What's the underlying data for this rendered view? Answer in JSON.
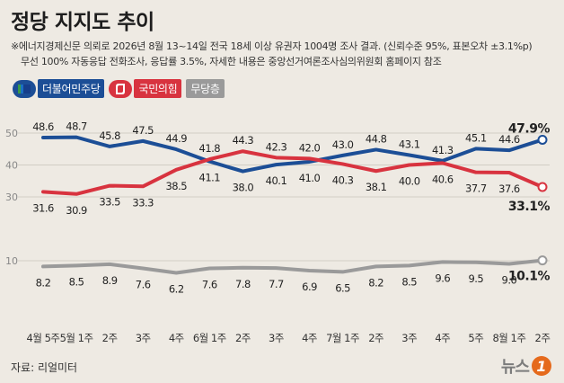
{
  "header": {
    "title": "정당 지지도 추이",
    "note_line1": "※에너지경제신문 의뢰로 2026년 8월 13~14일 전국 18세 이상 유권자 1004명 조사 결과. (신뢰수준 95%, 표본오차 ±3.1%p)",
    "note_line2": "무선 100% 자동응답 전화조사, 응답률 3.5%, 자세한 내용은 중앙선거여론조사심의위원회 홈페이지 참조"
  },
  "legend": [
    {
      "label": "더불어민주당",
      "color": "#1c4e96",
      "icon": "democratic-party-logo-icon"
    },
    {
      "label": "국민의힘",
      "color": "#d8333f",
      "icon": "people-power-party-logo-icon"
    },
    {
      "label": "무당층",
      "color": "#9a9a9a",
      "icon": ""
    }
  ],
  "footer": {
    "source": "자료: 리얼미터",
    "logo_text": "뉴스",
    "logo_badge": "1"
  },
  "chart_data": {
    "type": "line",
    "categories": [
      "4월 5주",
      "5월 1주",
      "2주",
      "3주",
      "4주",
      "6월 1주",
      "2주",
      "3주",
      "4주",
      "7월 1주",
      "2주",
      "3주",
      "4주",
      "5주",
      "8월 1주",
      "2주"
    ],
    "y_ticks": [
      10,
      30,
      40,
      50
    ],
    "ylim": [
      0,
      52
    ],
    "grid": true,
    "legend_position": "top-left",
    "series": [
      {
        "name": "더불어민주당",
        "color": "#1c4e96",
        "values": [
          48.6,
          48.7,
          45.8,
          47.5,
          44.9,
          41.1,
          38.0,
          40.1,
          41.0,
          43.0,
          44.8,
          43.1,
          41.3,
          45.1,
          44.6,
          47.9
        ],
        "labels": [
          "48.6",
          "48.7",
          "45.8",
          "47.5",
          "44.9",
          "41.1",
          "38.0",
          "40.1",
          "41.0",
          "43.0",
          "44.8",
          "43.1",
          "41.3",
          "45.1",
          "44.6",
          "47.9%"
        ]
      },
      {
        "name": "국민의힘",
        "color": "#d8333f",
        "values": [
          31.6,
          30.9,
          33.5,
          33.3,
          38.5,
          41.8,
          44.3,
          42.3,
          42.0,
          40.3,
          38.1,
          40.0,
          40.6,
          37.7,
          37.6,
          33.1
        ],
        "labels": [
          "31.6",
          "30.9",
          "33.5",
          "33.3",
          "38.5",
          "41.8",
          "44.3",
          "42.3",
          "42.0",
          "40.3",
          "38.1",
          "40.0",
          "40.6",
          "37.7",
          "37.6",
          "33.1%"
        ]
      },
      {
        "name": "무당층",
        "color": "#9a9a9a",
        "values": [
          8.2,
          8.5,
          8.9,
          7.6,
          6.2,
          7.6,
          7.8,
          7.7,
          6.9,
          6.5,
          8.2,
          8.5,
          9.6,
          9.5,
          9.0,
          10.1
        ],
        "labels": [
          "8.2",
          "8.5",
          "8.9",
          "7.6",
          "6.2",
          "7.6",
          "7.8",
          "7.7",
          "6.9",
          "6.5",
          "8.2",
          "8.5",
          "9.6",
          "9.5",
          "9.0",
          "10.1%"
        ]
      }
    ]
  }
}
